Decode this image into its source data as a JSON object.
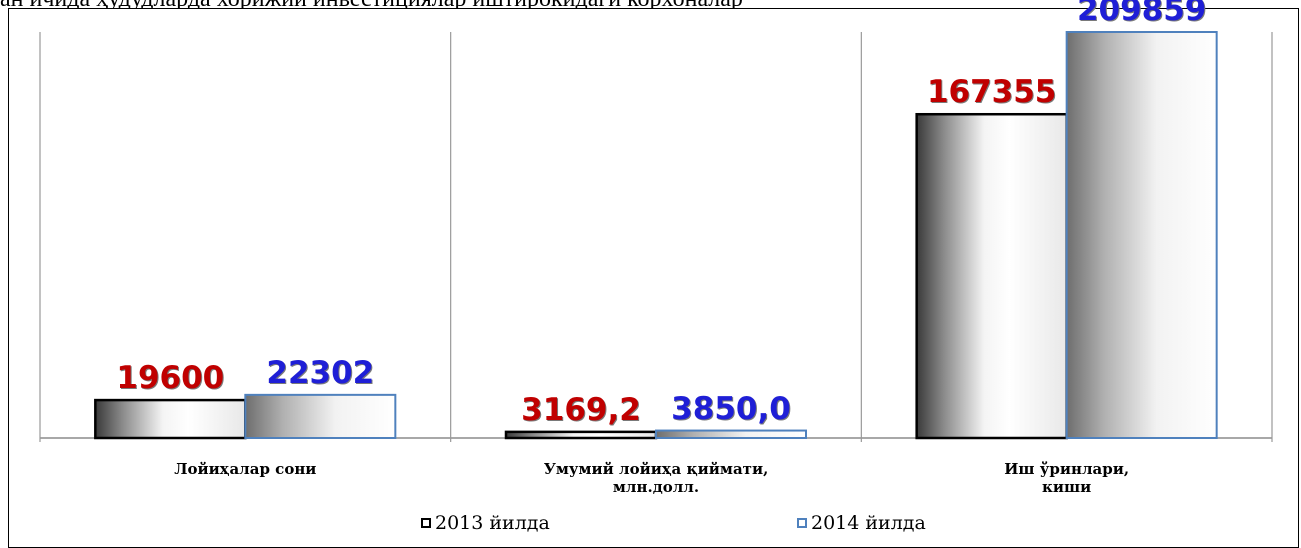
{
  "header_fragment": "ан ичида ҳудудларда хорижий инвестициялар иштирокидаги корхоналар",
  "chart_data": {
    "type": "bar",
    "categories": [
      [
        "Лойиҳалар сони"
      ],
      [
        "Умумий лойиҳа қиймати,",
        "млн.долл."
      ],
      [
        "Иш ўринлари,",
        "киши"
      ]
    ],
    "series": [
      {
        "name": "2013 йилда",
        "values": [
          19600,
          3169.2,
          167355
        ],
        "labels": [
          "19600",
          "3169,2",
          "167355"
        ],
        "edge_color": "#000000",
        "label_color": "#c00000"
      },
      {
        "name": "2014 йилда",
        "values": [
          22302,
          3850.0,
          209859
        ],
        "labels": [
          "22302",
          "3850,0",
          "209859"
        ],
        "edge_color": "#4f81bd",
        "label_color": "#1f1fd6"
      }
    ],
    "ylim": [
      0,
      209859
    ],
    "grid": "vertical category separators",
    "legend_position": "bottom"
  }
}
